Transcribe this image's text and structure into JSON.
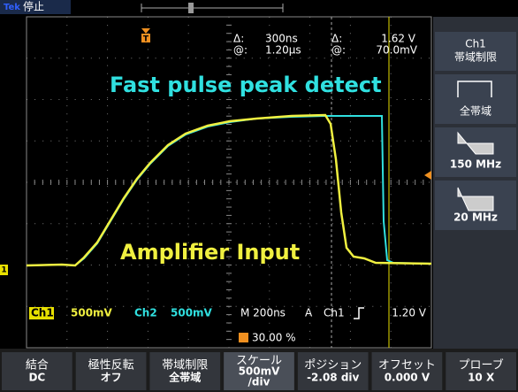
{
  "header": {
    "brand": "Tek",
    "state": "停止"
  },
  "cursors": {
    "delta_label": "Δ:",
    "at_label": "@:",
    "time_delta": "300ns",
    "time_at": "1.20µs",
    "volt_delta": "1.62 V",
    "volt_at": "70.0mV"
  },
  "annotations": {
    "cyan": "Fast pulse peak detect",
    "yellow": "Amplifier Input"
  },
  "status": {
    "ch1": "Ch1",
    "ch1_scale": "500mV",
    "ch2": "Ch2",
    "ch2_scale": "500mV",
    "timebase": "M 200ns",
    "trigger_mode": "A",
    "trigger_source": "Ch1",
    "trigger_level": "1.20 V",
    "trigger_position": "30.00 %"
  },
  "side_menu": {
    "title": "Ch1",
    "subtitle": "帯域制限",
    "options": [
      "全帯域",
      "150 MHz",
      "20 MHz"
    ]
  },
  "bottom_menu": [
    {
      "label": "結合",
      "value": "DC"
    },
    {
      "label": "極性反転",
      "value": "オフ"
    },
    {
      "label": "帯域制限",
      "value": "全帯域"
    },
    {
      "label": "スケール",
      "value": "500mV",
      "unit": "/div"
    },
    {
      "label": "ポジション",
      "value": "-2.08 div"
    },
    {
      "label": "オフセット",
      "value": "0.000 V"
    },
    {
      "label": "プローブ",
      "value": "10 X"
    }
  ]
}
